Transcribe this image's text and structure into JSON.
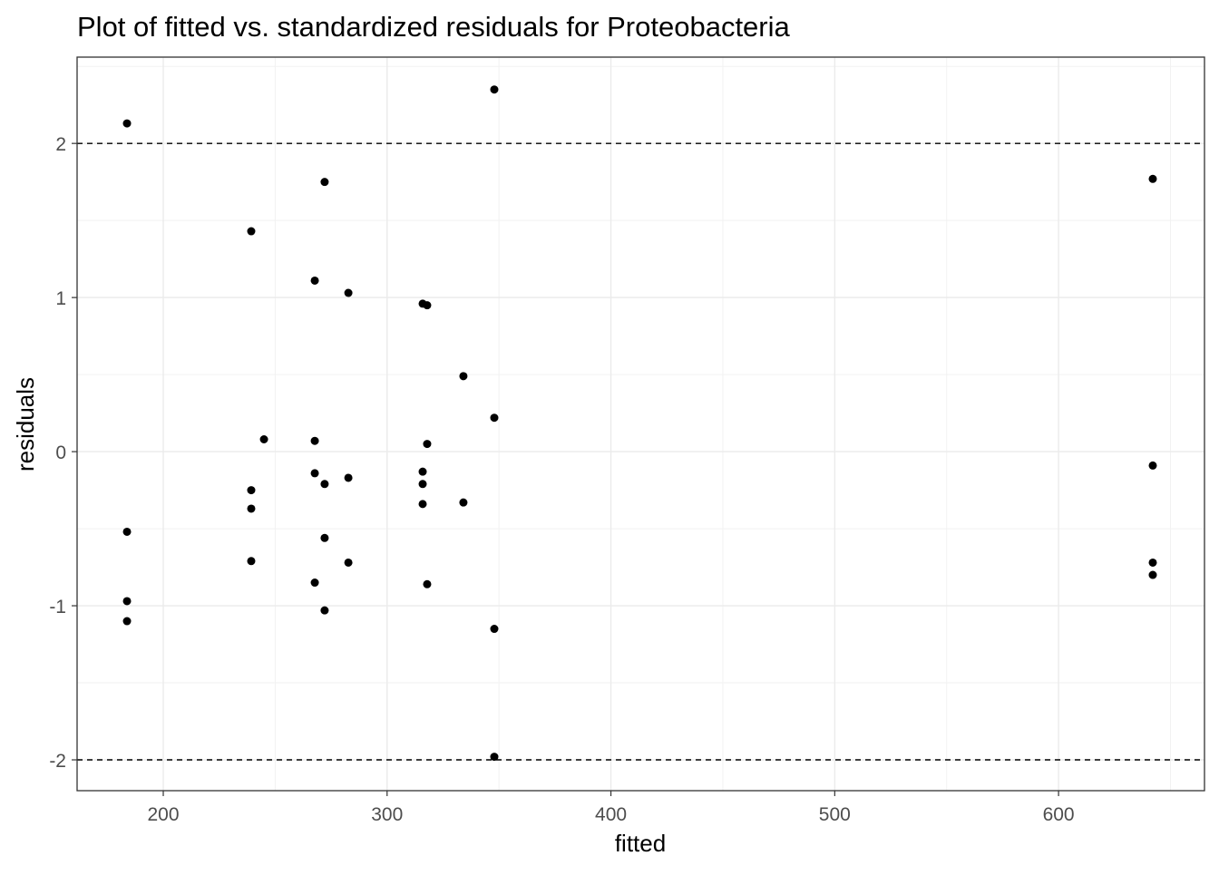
{
  "chart_data": {
    "type": "scatter",
    "title": "Plot of fitted vs. standardized residuals for Proteobacteria",
    "xlabel": "fitted",
    "ylabel": "residuals",
    "xlim": [
      161.5,
      665.2
    ],
    "ylim": [
      -2.2,
      2.56
    ],
    "xticks": [
      200,
      300,
      400,
      500,
      600
    ],
    "yticks": [
      -2,
      -1,
      0,
      1,
      2
    ],
    "xtick_labels": [
      "200",
      "300",
      "400",
      "500",
      "600"
    ],
    "ytick_labels": [
      "-2",
      "-1",
      "0",
      "1",
      "2"
    ],
    "grid": true,
    "reference_lines": [
      2,
      -2
    ],
    "point_color": "#000000",
    "points": [
      {
        "x": 183.8,
        "y": 2.13
      },
      {
        "x": 183.8,
        "y": -0.52
      },
      {
        "x": 183.8,
        "y": -0.97
      },
      {
        "x": 183.8,
        "y": -1.1
      },
      {
        "x": 239.3,
        "y": 1.43
      },
      {
        "x": 239.3,
        "y": -0.25
      },
      {
        "x": 239.3,
        "y": -0.37
      },
      {
        "x": 239.3,
        "y": -0.71
      },
      {
        "x": 245.0,
        "y": 0.08
      },
      {
        "x": 267.7,
        "y": 1.11
      },
      {
        "x": 267.7,
        "y": 0.07
      },
      {
        "x": 267.7,
        "y": -0.14
      },
      {
        "x": 267.7,
        "y": -0.85
      },
      {
        "x": 272.1,
        "y": 1.75
      },
      {
        "x": 272.1,
        "y": -0.21
      },
      {
        "x": 272.1,
        "y": -0.56
      },
      {
        "x": 272.1,
        "y": -1.03
      },
      {
        "x": 282.7,
        "y": 1.03
      },
      {
        "x": 282.7,
        "y": -0.17
      },
      {
        "x": 282.7,
        "y": -0.72
      },
      {
        "x": 315.9,
        "y": 0.96
      },
      {
        "x": 315.9,
        "y": -0.13
      },
      {
        "x": 315.9,
        "y": -0.21
      },
      {
        "x": 315.9,
        "y": -0.34
      },
      {
        "x": 317.9,
        "y": 0.95
      },
      {
        "x": 317.9,
        "y": 0.05
      },
      {
        "x": 317.9,
        "y": -0.86
      },
      {
        "x": 334.1,
        "y": 0.49
      },
      {
        "x": 334.1,
        "y": -0.33
      },
      {
        "x": 347.9,
        "y": 2.35
      },
      {
        "x": 347.9,
        "y": 0.22
      },
      {
        "x": 347.9,
        "y": -1.15
      },
      {
        "x": 347.9,
        "y": -1.98
      },
      {
        "x": 642.1,
        "y": 1.77
      },
      {
        "x": 642.1,
        "y": -0.09
      },
      {
        "x": 642.1,
        "y": -0.72
      },
      {
        "x": 642.1,
        "y": -0.8
      }
    ]
  }
}
